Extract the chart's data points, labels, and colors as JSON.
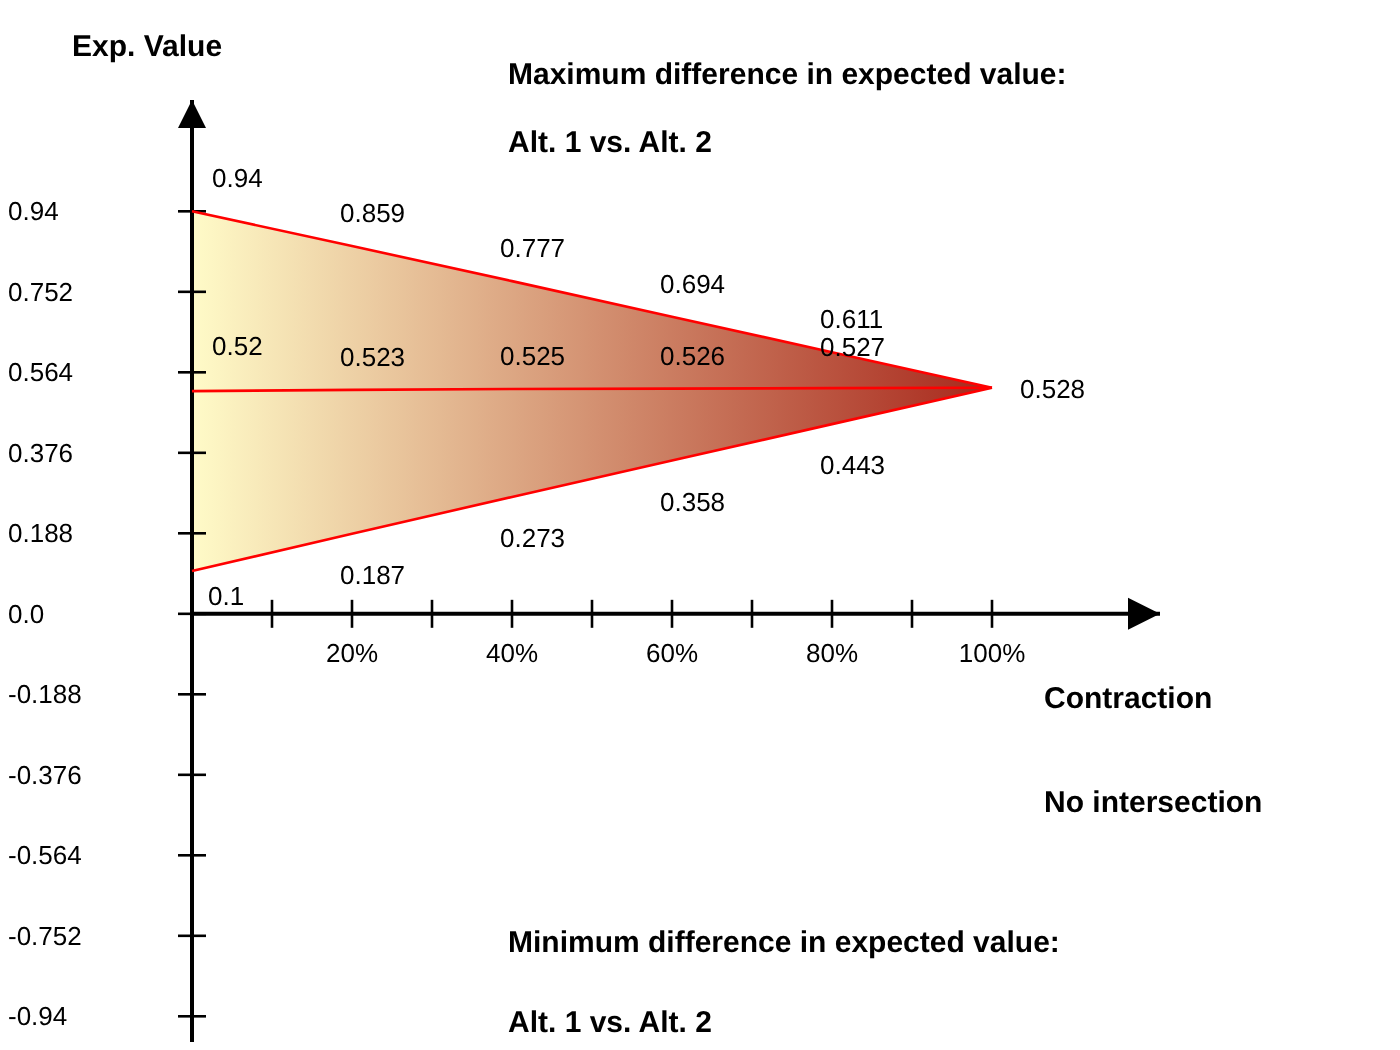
{
  "chart_data": {
    "type": "line",
    "title": "Maximum difference in expected value:",
    "subtitle": "Alt. 1 vs. Alt. 2",
    "xlabel": "Contraction",
    "ylabel": "Exp. Value",
    "annotations": [
      "No intersection",
      "Minimum difference in expected value:",
      "Alt. 1 vs. Alt. 2"
    ],
    "x": [
      0,
      20,
      40,
      60,
      80,
      100
    ],
    "xlim": [
      0,
      121
    ],
    "ylim": [
      -1.0,
      1.2
    ],
    "xticks": [
      {
        "value": 0,
        "label": null
      },
      {
        "value": 10,
        "label": null
      },
      {
        "value": 20,
        "label": "20%"
      },
      {
        "value": 30,
        "label": null
      },
      {
        "value": 40,
        "label": "40%"
      },
      {
        "value": 50,
        "label": null
      },
      {
        "value": 60,
        "label": "60%"
      },
      {
        "value": 70,
        "label": null
      },
      {
        "value": 80,
        "label": "80%"
      },
      {
        "value": 90,
        "label": null
      },
      {
        "value": 100,
        "label": "100%"
      }
    ],
    "yticks": [
      -0.94,
      -0.752,
      -0.564,
      -0.376,
      -0.188,
      {
        "value": 0,
        "label": "0.0"
      },
      0.188,
      0.376,
      0.564,
      0.752,
      0.94
    ],
    "series": [
      {
        "color": "#ff0000",
        "values": [
          0.94,
          0.859,
          0.777,
          0.694,
          0.611,
          0.528
        ],
        "value_labels": [
          "0.94",
          "0.859",
          "0.777",
          "0.694",
          "0.611",
          null
        ]
      },
      {
        "color": "#ff0000",
        "values": [
          0.52,
          0.523,
          0.525,
          0.526,
          0.527,
          0.528
        ],
        "lower": [
          0.1,
          0.187,
          0.273,
          0.358,
          0.443,
          0.528
        ],
        "upper": [
          0.94,
          0.859,
          0.777,
          0.694,
          0.611,
          0.528
        ],
        "value_labels": [
          "0.52",
          "0.523",
          "0.525",
          "0.526",
          "0.527",
          "0.528"
        ]
      },
      {
        "color": "#ff0000",
        "values": [
          0.1,
          0.187,
          0.273,
          0.358,
          0.443,
          0.528
        ],
        "value_labels": [
          "0.1",
          "0.187",
          "0.273",
          "0.358",
          "0.443",
          null
        ]
      }
    ],
    "line_style": "solid"
  }
}
